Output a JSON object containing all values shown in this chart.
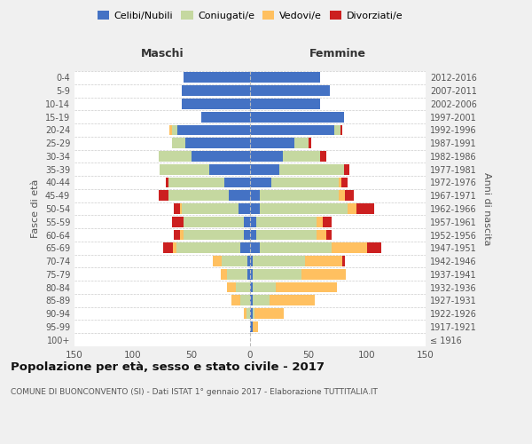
{
  "age_groups": [
    "100+",
    "95-99",
    "90-94",
    "85-89",
    "80-84",
    "75-79",
    "70-74",
    "65-69",
    "60-64",
    "55-59",
    "50-54",
    "45-49",
    "40-44",
    "35-39",
    "30-34",
    "25-29",
    "20-24",
    "15-19",
    "10-14",
    "5-9",
    "0-4"
  ],
  "birth_years": [
    "≤ 1916",
    "1917-1921",
    "1922-1926",
    "1927-1931",
    "1932-1936",
    "1937-1941",
    "1942-1946",
    "1947-1951",
    "1952-1956",
    "1957-1961",
    "1962-1966",
    "1967-1971",
    "1972-1976",
    "1977-1981",
    "1982-1986",
    "1987-1991",
    "1992-1996",
    "1997-2001",
    "2002-2006",
    "2007-2011",
    "2012-2016"
  ],
  "male": {
    "celibi": [
      0,
      0,
      0,
      0,
      0,
      2,
      2,
      8,
      5,
      5,
      10,
      18,
      22,
      35,
      50,
      55,
      62,
      42,
      58,
      58,
      57
    ],
    "coniugati": [
      0,
      0,
      3,
      8,
      12,
      18,
      22,
      55,
      52,
      52,
      48,
      52,
      48,
      42,
      28,
      12,
      5,
      0,
      0,
      0,
      0
    ],
    "vedovi": [
      0,
      0,
      2,
      8,
      8,
      5,
      8,
      3,
      3,
      0,
      2,
      0,
      0,
      0,
      0,
      0,
      2,
      0,
      0,
      0,
      0
    ],
    "divorziati": [
      0,
      0,
      0,
      0,
      0,
      0,
      0,
      8,
      5,
      10,
      5,
      8,
      2,
      0,
      0,
      0,
      0,
      0,
      0,
      0,
      0
    ]
  },
  "female": {
    "nubili": [
      0,
      2,
      2,
      2,
      2,
      2,
      2,
      8,
      5,
      5,
      8,
      8,
      18,
      25,
      28,
      38,
      72,
      80,
      60,
      68,
      60
    ],
    "coniugate": [
      0,
      0,
      2,
      15,
      20,
      42,
      45,
      62,
      52,
      52,
      75,
      68,
      58,
      55,
      32,
      12,
      5,
      0,
      0,
      0,
      0
    ],
    "vedove": [
      0,
      5,
      25,
      38,
      52,
      38,
      32,
      30,
      8,
      5,
      8,
      5,
      2,
      0,
      0,
      0,
      0,
      0,
      0,
      0,
      0
    ],
    "divorziate": [
      0,
      0,
      0,
      0,
      0,
      0,
      2,
      12,
      5,
      8,
      15,
      8,
      5,
      5,
      5,
      2,
      2,
      0,
      0,
      0,
      0
    ]
  },
  "colors": {
    "celibi": "#4472c4",
    "coniugati": "#c5d8a0",
    "vedovi": "#ffc060",
    "divorziati": "#cc2020"
  },
  "xlim": 150,
  "title": "Popolazione per età, sesso e stato civile - 2017",
  "subtitle": "COMUNE DI BUONCONVENTO (SI) - Dati ISTAT 1° gennaio 2017 - Elaborazione TUTTITALIA.IT",
  "ylabel_left": "Fasce di età",
  "ylabel_right": "Anni di nascita",
  "xlabel_left": "Maschi",
  "xlabel_right": "Femmine",
  "bg_color": "#f0f0f0",
  "plot_bg": "#ffffff"
}
